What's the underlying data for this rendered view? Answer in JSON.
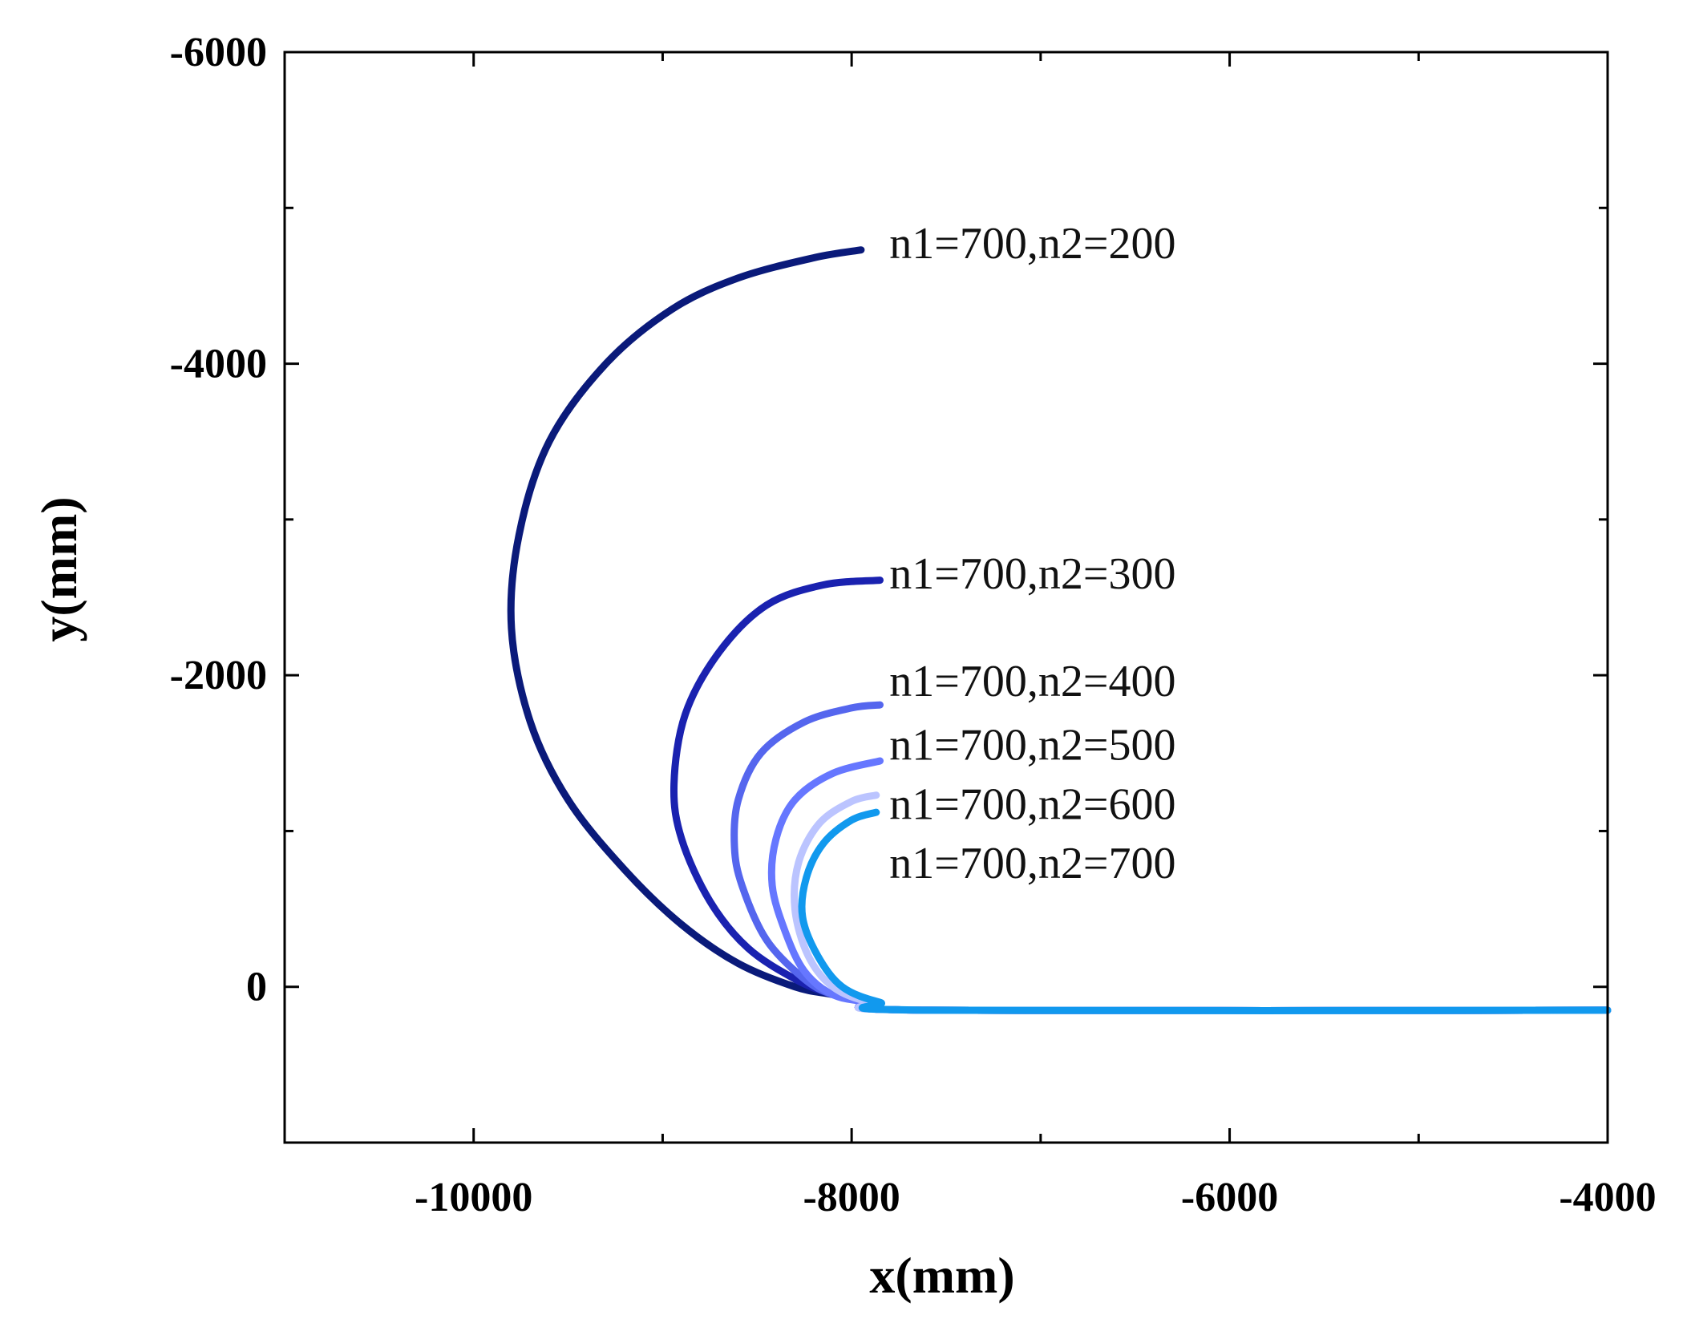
{
  "chart_data": {
    "type": "line",
    "title": "",
    "xlabel": "x(mm)",
    "ylabel": "y(mm)",
    "xlim": [
      -11000,
      -4000
    ],
    "ylim": [
      1000,
      -6000
    ],
    "y_inverted": true,
    "xticks": [
      -10000,
      -8000,
      -6000,
      -4000
    ],
    "xtick_labels": [
      "-10000",
      "-8000",
      "-6000",
      "-4000"
    ],
    "yticks": [
      -6000,
      -4000,
      -2000,
      0
    ],
    "ytick_labels": [
      "-6000",
      "-4000",
      "-2000",
      "0"
    ],
    "grid": false,
    "legend": "inline labels at curve ends",
    "series": [
      {
        "name": "n1=700,n2=200",
        "color": "#0a1a7a",
        "points": [
          [
            -4000,
            150
          ],
          [
            -7600,
            150
          ],
          [
            -7900,
            100
          ],
          [
            -8100,
            50
          ],
          [
            -8300,
            0
          ],
          [
            -8600,
            -150
          ],
          [
            -8900,
            -400
          ],
          [
            -9200,
            -750
          ],
          [
            -9500,
            -1200
          ],
          [
            -9700,
            -1700
          ],
          [
            -9800,
            -2300
          ],
          [
            -9760,
            -2900
          ],
          [
            -9600,
            -3500
          ],
          [
            -9300,
            -4000
          ],
          [
            -8950,
            -4350
          ],
          [
            -8600,
            -4550
          ],
          [
            -8200,
            -4680
          ],
          [
            -7950,
            -4730
          ]
        ]
      },
      {
        "name": "n1=700,n2=300",
        "color": "#1a22b0",
        "points": [
          [
            -4000,
            150
          ],
          [
            -7600,
            150
          ],
          [
            -7900,
            100
          ],
          [
            -8100,
            50
          ],
          [
            -8300,
            -50
          ],
          [
            -8550,
            -250
          ],
          [
            -8750,
            -550
          ],
          [
            -8900,
            -950
          ],
          [
            -8940,
            -1300
          ],
          [
            -8880,
            -1750
          ],
          [
            -8700,
            -2150
          ],
          [
            -8450,
            -2450
          ],
          [
            -8150,
            -2580
          ],
          [
            -7850,
            -2610
          ]
        ]
      },
      {
        "name": "n1=700,n2=400",
        "color": "#5566ee",
        "points": [
          [
            -4000,
            150
          ],
          [
            -7600,
            150
          ],
          [
            -7900,
            100
          ],
          [
            -8100,
            50
          ],
          [
            -8250,
            -50
          ],
          [
            -8450,
            -300
          ],
          [
            -8580,
            -650
          ],
          [
            -8620,
            -900
          ],
          [
            -8600,
            -1200
          ],
          [
            -8480,
            -1500
          ],
          [
            -8250,
            -1700
          ],
          [
            -8000,
            -1790
          ],
          [
            -7850,
            -1810
          ]
        ]
      },
      {
        "name": "n1=700,n2=500",
        "color": "#6677ff",
        "points": [
          [
            -4000,
            150
          ],
          [
            -7600,
            150
          ],
          [
            -7900,
            100
          ],
          [
            -8100,
            50
          ],
          [
            -8250,
            -100
          ],
          [
            -8350,
            -350
          ],
          [
            -8420,
            -650
          ],
          [
            -8400,
            -950
          ],
          [
            -8300,
            -1200
          ],
          [
            -8100,
            -1370
          ],
          [
            -7850,
            -1450
          ]
        ]
      },
      {
        "name": "n1=700,n2=600",
        "color": "#bbc4ff",
        "points": [
          [
            -4000,
            150
          ],
          [
            -7600,
            150
          ],
          [
            -7900,
            100
          ],
          [
            -8100,
            0
          ],
          [
            -8230,
            -200
          ],
          [
            -8300,
            -500
          ],
          [
            -8280,
            -800
          ],
          [
            -8170,
            -1050
          ],
          [
            -8000,
            -1190
          ],
          [
            -7870,
            -1230
          ]
        ]
      },
      {
        "name": "n1=700,n2=700",
        "color": "#1199ee",
        "points": [
          [
            -4000,
            150
          ],
          [
            -7600,
            150
          ],
          [
            -7850,
            100
          ],
          [
            -8050,
            0
          ],
          [
            -8180,
            -200
          ],
          [
            -8260,
            -450
          ],
          [
            -8240,
            -700
          ],
          [
            -8150,
            -920
          ],
          [
            -8000,
            -1070
          ],
          [
            -7870,
            -1120
          ]
        ]
      }
    ],
    "labels": [
      {
        "text": "n1=700,n2=200",
        "x": -7800,
        "y": -4770
      },
      {
        "text": "n1=700,n2=300",
        "x": -7800,
        "y": -2650
      },
      {
        "text": "n1=700,n2=400",
        "x": -7800,
        "y": -1960
      },
      {
        "text": "n1=700,n2=500",
        "x": -7800,
        "y": -1550
      },
      {
        "text": "n1=700,n2=600",
        "x": -7800,
        "y": -1170
      },
      {
        "text": "n1=700,n2=700",
        "x": -7800,
        "y": -790
      }
    ]
  }
}
